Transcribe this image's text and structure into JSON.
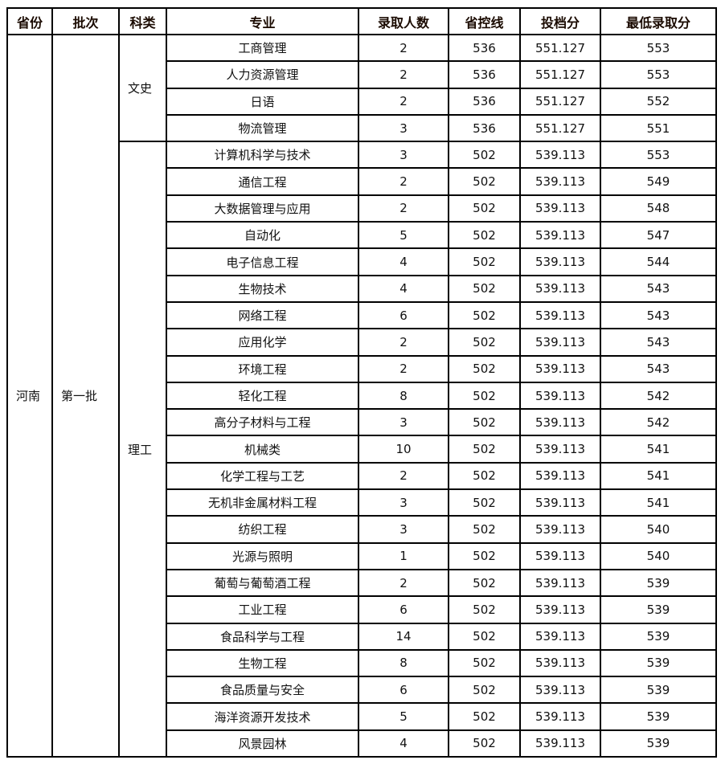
{
  "headers": [
    "省份",
    "批次",
    "科类",
    "专业",
    "录取人数",
    "省控线",
    "投档分",
    "最低录取分"
  ],
  "province": "河南",
  "batch": "第一批",
  "groups": [
    {
      "category": "文史",
      "rows": [
        [
          "工商管理",
          "2",
          "536",
          "551.127",
          "553"
        ],
        [
          "人力资源管理",
          "2",
          "536",
          "551.127",
          "553"
        ],
        [
          "日语",
          "2",
          "536",
          "551.127",
          "552"
        ],
        [
          "物流管理",
          "3",
          "536",
          "551.127",
          "551"
        ]
      ]
    },
    {
      "category": "理工",
      "rows": [
        [
          "计算机科学与技术",
          "3",
          "502",
          "539.113",
          "553"
        ],
        [
          "通信工程",
          "2",
          "502",
          "539.113",
          "549"
        ],
        [
          "大数据管理与应用",
          "2",
          "502",
          "539.113",
          "548"
        ],
        [
          "自动化",
          "5",
          "502",
          "539.113",
          "547"
        ],
        [
          "电子信息工程",
          "4",
          "502",
          "539.113",
          "544"
        ],
        [
          "生物技术",
          "4",
          "502",
          "539.113",
          "543"
        ],
        [
          "网络工程",
          "6",
          "502",
          "539.113",
          "543"
        ],
        [
          "应用化学",
          "2",
          "502",
          "539.113",
          "543"
        ],
        [
          "环境工程",
          "2",
          "502",
          "539.113",
          "543"
        ],
        [
          "轻化工程",
          "8",
          "502",
          "539.113",
          "542"
        ],
        [
          "高分子材料与工程",
          "3",
          "502",
          "539.113",
          "542"
        ],
        [
          "机械类",
          "10",
          "502",
          "539.113",
          "541"
        ],
        [
          "化学工程与工艺",
          "2",
          "502",
          "539.113",
          "541"
        ],
        [
          "无机非金属材料工程",
          "3",
          "502",
          "539.113",
          "541"
        ],
        [
          "纺织工程",
          "3",
          "502",
          "539.113",
          "540"
        ],
        [
          "光源与照明",
          "1",
          "502",
          "539.113",
          "540"
        ],
        [
          "葡萄与葡萄酒工程",
          "2",
          "502",
          "539.113",
          "539"
        ],
        [
          "工业工程",
          "6",
          "502",
          "539.113",
          "539"
        ],
        [
          "食品科学与工程",
          "14",
          "502",
          "539.113",
          "539"
        ],
        [
          "生物工程",
          "8",
          "502",
          "539.113",
          "539"
        ],
        [
          "食品质量与安全",
          "6",
          "502",
          "539.113",
          "539"
        ],
        [
          "海洋资源开发技术",
          "5",
          "502",
          "539.113",
          "539"
        ],
        [
          "风景园林",
          "4",
          "502",
          "539.113",
          "539"
        ]
      ]
    }
  ]
}
